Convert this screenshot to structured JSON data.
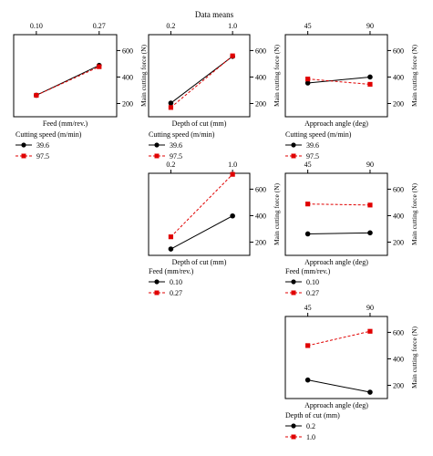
{
  "header": {
    "title": "Data means"
  },
  "colors": {
    "series_a": "#000000",
    "series_b": "#e00000"
  },
  "chart_data": [
    {
      "id": "feed-cs",
      "type": "line",
      "xlabel": "Feed (mm/rev.)",
      "ylabel": "Main cutting force (N)",
      "categories": [
        "0.10",
        "0.27"
      ],
      "yticks": [
        200,
        400,
        600
      ],
      "ylim": [
        100,
        720
      ],
      "legend": {
        "title": "Cutting speed (m/min)",
        "series": [
          {
            "name": "39.6",
            "values": [
              262,
              488
            ]
          },
          {
            "name": "97.5",
            "values": [
              262,
              478
            ]
          }
        ]
      }
    },
    {
      "id": "doc-cs",
      "type": "line",
      "xlabel": "Depth of cut (mm)",
      "ylabel": "Main cutting force (N)",
      "categories": [
        "0.2",
        "1.0"
      ],
      "yticks": [
        200,
        400,
        600
      ],
      "ylim": [
        100,
        720
      ],
      "legend": {
        "title": "Cutting speed (m/min)",
        "series": [
          {
            "name": "39.6",
            "values": [
              203,
              556
            ]
          },
          {
            "name": "97.5",
            "values": [
              170,
              560
            ]
          }
        ]
      }
    },
    {
      "id": "angle-cs",
      "type": "line",
      "xlabel": "Approach angle (deg)",
      "ylabel": "Main cutting force (N)",
      "categories": [
        "45",
        "90"
      ],
      "yticks": [
        200,
        400,
        600
      ],
      "ylim": [
        100,
        720
      ],
      "legend": {
        "title": "Cutting speed (m/min)",
        "series": [
          {
            "name": "39.6",
            "values": [
              355,
              400
            ]
          },
          {
            "name": "97.5",
            "values": [
              385,
              345
            ]
          }
        ]
      }
    },
    {
      "id": "doc-feed",
      "type": "line",
      "xlabel": "Depth of cut (mm)",
      "ylabel": "Main cutting force (N)",
      "categories": [
        "0.2",
        "1.0"
      ],
      "yticks": [
        200,
        400,
        600
      ],
      "ylim": [
        100,
        720
      ],
      "legend": {
        "title": "Feed (mm/rev.)",
        "series": [
          {
            "name": "0.10",
            "values": [
              148,
              398
            ]
          },
          {
            "name": "0.27",
            "values": [
              240,
              712
            ]
          }
        ]
      }
    },
    {
      "id": "angle-feed",
      "type": "line",
      "xlabel": "Approach angle (deg)",
      "ylabel": "Main cutting force (N)",
      "categories": [
        "45",
        "90"
      ],
      "yticks": [
        200,
        400,
        600
      ],
      "ylim": [
        100,
        720
      ],
      "legend": {
        "title": "Feed (mm/rev.)",
        "series": [
          {
            "name": "0.10",
            "values": [
              262,
              270
            ]
          },
          {
            "name": "0.27",
            "values": [
              488,
              480
            ]
          }
        ]
      }
    },
    {
      "id": "angle-doc",
      "type": "line",
      "xlabel": "Approach angle (deg)",
      "ylabel": "Main cutting force (N)",
      "categories": [
        "45",
        "90"
      ],
      "yticks": [
        200,
        400,
        600
      ],
      "ylim": [
        100,
        720
      ],
      "legend": {
        "title": "Depth of cut (mm)",
        "series": [
          {
            "name": "0.2",
            "values": [
              240,
              148
            ]
          },
          {
            "name": "1.0",
            "values": [
              500,
              608
            ]
          }
        ]
      }
    }
  ]
}
